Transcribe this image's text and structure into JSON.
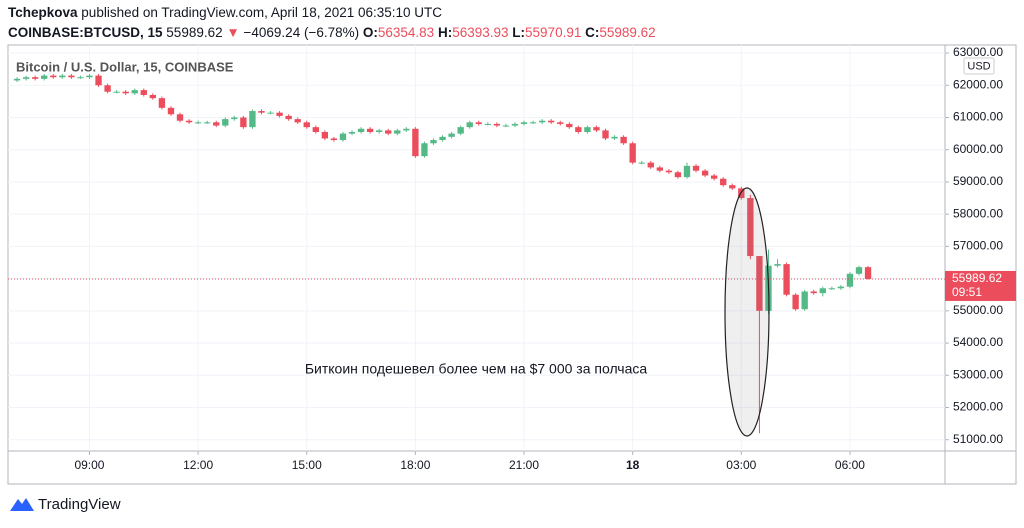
{
  "header": {
    "author": "Tchepkova",
    "published": "published on TradingView.com, April 18, 2021 06:35:10 UTC",
    "symbol": "COINBASE:BTCUSD, 15",
    "price": "55989.62",
    "arrow": "▼",
    "change": "−4069.24 (−6.78%)",
    "o_label": "O:",
    "o": "56354.83",
    "h_label": "H:",
    "h": "56393.93",
    "l_label": "L:",
    "l": "55970.91",
    "c_label": "C:",
    "c": "55989.62"
  },
  "footer": {
    "brand": "TradingView"
  },
  "chart_data": {
    "type": "candlestick",
    "legend": "Bitcoin / U.S. Dollar, 15, COINBASE",
    "currency": "USD",
    "annotation": "Биткоин подешевел более чем на $7 000 за полчаса",
    "countdown": "09:51",
    "up_color": "#53b987",
    "down_color": "#eb4d5c",
    "xlim": [
      -1,
      102.5
    ],
    "xticks": [
      {
        "value": 8,
        "label": "09:00"
      },
      {
        "value": 20,
        "label": "12:00"
      },
      {
        "value": 32,
        "label": "15:00"
      },
      {
        "value": 44,
        "label": "18:00"
      },
      {
        "value": 56,
        "label": "21:00"
      },
      {
        "value": 68,
        "label": "18"
      },
      {
        "value": 80,
        "label": "03:00"
      },
      {
        "value": 92,
        "label": "06:00"
      }
    ],
    "ylim": [
      50650,
      63250
    ],
    "yticks": [
      {
        "value": 51000,
        "label": "51000.00"
      },
      {
        "value": 52000,
        "label": "52000.00"
      },
      {
        "value": 53000,
        "label": "53000.00"
      },
      {
        "value": 54000,
        "label": "54000.00"
      },
      {
        "value": 55000,
        "label": "55000.00"
      },
      {
        "value": 56000,
        "label": "56000.00"
      },
      {
        "value": 57000,
        "label": "57000.00"
      },
      {
        "value": 58000,
        "label": "58000.00"
      },
      {
        "value": 59000,
        "label": "59000.00"
      },
      {
        "value": 60000,
        "label": "60000.00"
      },
      {
        "value": 61000,
        "label": "61000.00"
      },
      {
        "value": 62000,
        "label": "62000.00"
      },
      {
        "value": 63000,
        "label": "63000.00"
      }
    ],
    "grid": true,
    "candles": {
      "open": [
        62150,
        62200,
        62250,
        62200,
        62300,
        62250,
        62300,
        62250,
        62250,
        62300,
        62000,
        61800,
        61800,
        61750,
        61850,
        61700,
        61600,
        61300,
        61100,
        60900,
        60850,
        60850,
        60850,
        60750,
        60950,
        61000,
        60700,
        61200,
        61150,
        61150,
        61050,
        60950,
        60850,
        60700,
        60550,
        60350,
        60300,
        60500,
        60550,
        60650,
        60550,
        60600,
        60500,
        60600,
        60650,
        59800,
        60200,
        60300,
        60400,
        60500,
        60700,
        60850,
        60800,
        60800,
        60750,
        60750,
        60800,
        60850,
        60850,
        60900,
        60850,
        60800,
        60700,
        60550,
        60700,
        60600,
        60350,
        60400,
        60200,
        59600,
        59600,
        59450,
        59350,
        59300,
        59150,
        59500,
        59350,
        59200,
        59100,
        58900,
        58800,
        58500,
        56700,
        55000,
        56400,
        56450,
        55500,
        55050,
        55600,
        55550,
        55700,
        55700,
        55750,
        56150,
        56354.83
      ],
      "high": [
        62250,
        62300,
        62300,
        62350,
        62350,
        62350,
        62350,
        62300,
        62350,
        62350,
        62050,
        61850,
        61850,
        61900,
        61900,
        61750,
        61650,
        61350,
        61150,
        60950,
        60900,
        60900,
        60900,
        61000,
        61050,
        61050,
        61250,
        61250,
        61200,
        61200,
        61100,
        61000,
        60900,
        60750,
        60600,
        60400,
        60550,
        60600,
        60700,
        60700,
        60650,
        60650,
        60650,
        60700,
        60700,
        60250,
        60350,
        60450,
        60550,
        60750,
        60900,
        60900,
        60850,
        60850,
        60800,
        60850,
        60900,
        60900,
        60950,
        60950,
        60900,
        60850,
        60750,
        60750,
        60750,
        60650,
        60450,
        60450,
        60250,
        59650,
        59650,
        59500,
        59400,
        59350,
        59600,
        59550,
        59400,
        59250,
        59150,
        58950,
        58850,
        58600,
        56700,
        56900,
        56600,
        56500,
        55550,
        55650,
        55650,
        55750,
        55750,
        55800,
        56200,
        56400,
        56393.93
      ],
      "low": [
        62100,
        62150,
        62150,
        62150,
        62200,
        62200,
        62200,
        62200,
        62200,
        61950,
        61750,
        61750,
        61700,
        61700,
        61650,
        61550,
        61250,
        61050,
        60850,
        60800,
        60800,
        60800,
        60700,
        60700,
        60900,
        60650,
        60650,
        61100,
        61100,
        61000,
        60900,
        60800,
        60650,
        60500,
        60300,
        60250,
        60250,
        60450,
        60500,
        60500,
        60500,
        60450,
        60450,
        60550,
        59750,
        59750,
        60150,
        60250,
        60350,
        60450,
        60650,
        60750,
        60750,
        60700,
        60700,
        60700,
        60750,
        60800,
        60800,
        60800,
        60750,
        60650,
        60500,
        60500,
        60550,
        60300,
        60300,
        60150,
        59550,
        59550,
        59400,
        59300,
        59250,
        59100,
        59100,
        59300,
        59150,
        59050,
        58850,
        58750,
        58450,
        56600,
        51200,
        54900,
        56350,
        55450,
        55000,
        55000,
        55500,
        55450,
        55650,
        55650,
        55700,
        56100,
        55970.91
      ],
      "close": [
        62200,
        62250,
        62200,
        62300,
        62250,
        62300,
        62250,
        62250,
        62300,
        62000,
        61800,
        61800,
        61750,
        61850,
        61700,
        61600,
        61300,
        61100,
        60900,
        60850,
        60850,
        60850,
        60750,
        60950,
        61000,
        60700,
        61200,
        61150,
        61150,
        61050,
        60950,
        60850,
        60700,
        60550,
        60350,
        60300,
        60500,
        60550,
        60650,
        60550,
        60600,
        60500,
        60600,
        60650,
        59800,
        60200,
        60300,
        60400,
        60500,
        60700,
        60850,
        60800,
        60800,
        60750,
        60750,
        60800,
        60850,
        60850,
        60900,
        60850,
        60800,
        60700,
        60550,
        60700,
        60600,
        60350,
        60400,
        60200,
        59600,
        59600,
        59450,
        59350,
        59300,
        59150,
        59500,
        59350,
        59200,
        59100,
        58900,
        58800,
        58500,
        56700,
        55000,
        56400,
        56450,
        55500,
        55050,
        55600,
        55550,
        55700,
        55700,
        55750,
        56150,
        56354.83,
        55989.62
      ]
    }
  }
}
